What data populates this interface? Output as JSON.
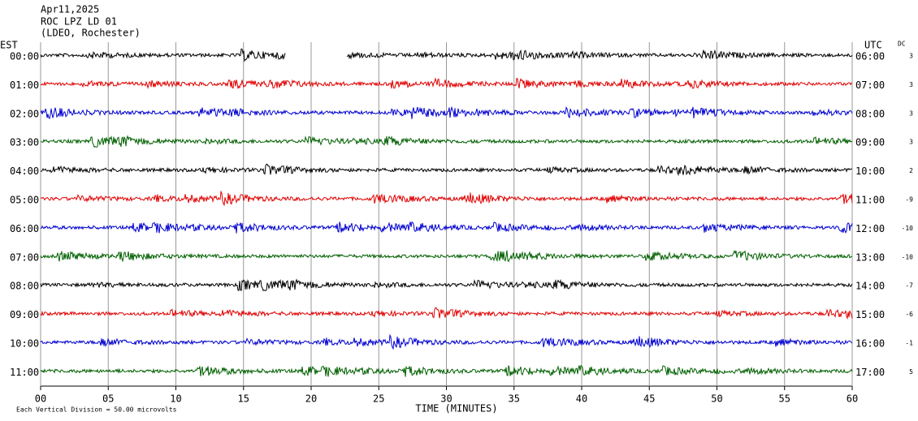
{
  "chart_data": {
    "type": "helicorder",
    "title_lines": [
      "Apr11,2025",
      "ROC LPZ LD 01",
      "(LDEO, Rochester)"
    ],
    "left_label": "EST",
    "right_label": "UTC",
    "dc_label": "DC",
    "xlabel": "TIME (MINUTES)",
    "footnote": "Each Vertical Division =   50.00 microvolts",
    "xlim": [
      0,
      60
    ],
    "xticks": [
      {
        "value": 0,
        "label": "00"
      },
      {
        "value": 5,
        "label": "05"
      },
      10,
      15,
      20,
      25,
      30,
      35,
      40,
      45,
      50,
      55,
      60
    ],
    "grid": true,
    "rows": [
      {
        "est": "00:00",
        "utc": "06:00",
        "dc": 3,
        "color": "#000000",
        "gaps": [
          [
            18.1,
            22.6
          ]
        ]
      },
      {
        "est": "01:00",
        "utc": "07:00",
        "dc": 3,
        "color": "#e00000"
      },
      {
        "est": "02:00",
        "utc": "08:00",
        "dc": 3,
        "color": "#0000d0"
      },
      {
        "est": "03:00",
        "utc": "09:00",
        "dc": 3,
        "color": "#006000"
      },
      {
        "est": "04:00",
        "utc": "10:00",
        "dc": 2,
        "color": "#000000"
      },
      {
        "est": "05:00",
        "utc": "11:00",
        "dc": -9,
        "color": "#e00000"
      },
      {
        "est": "06:00",
        "utc": "12:00",
        "dc": -10,
        "color": "#0000d0"
      },
      {
        "est": "07:00",
        "utc": "13:00",
        "dc": -10,
        "color": "#006000"
      },
      {
        "est": "08:00",
        "utc": "14:00",
        "dc": -7,
        "color": "#000000"
      },
      {
        "est": "09:00",
        "utc": "15:00",
        "dc": -6,
        "color": "#e00000"
      },
      {
        "est": "10:00",
        "utc": "16:00",
        "dc": -1,
        "color": "#0000d0"
      },
      {
        "est": "11:00",
        "utc": "17:00",
        "dc": 5,
        "color": "#006000"
      }
    ]
  }
}
